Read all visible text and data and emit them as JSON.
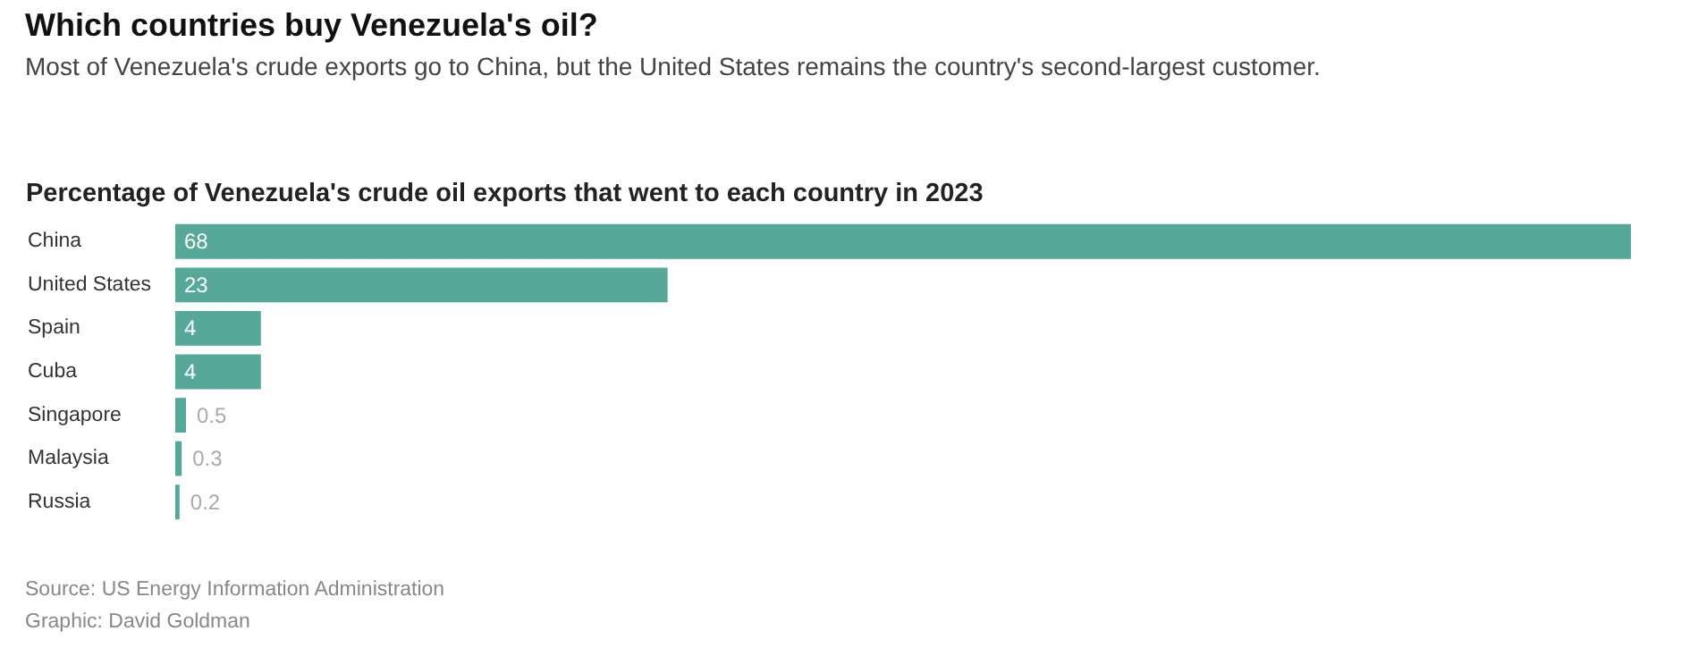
{
  "chart_data": {
    "type": "bar",
    "orientation": "horizontal",
    "title": "Which countries buy Venezuela's oil?",
    "subtitle": "Most of Venezuela's crude exports go to China, but the United States remains the country's second-largest customer.",
    "xlabel": "Percentage of Venezuela's crude oil exports that went to each country in 2023",
    "categories": [
      "China",
      "United States",
      "Spain",
      "Cuba",
      "Singapore",
      "Malaysia",
      "Russia"
    ],
    "values": [
      68,
      23,
      4,
      4,
      0.5,
      0.3,
      0.2
    ],
    "color": "#56a898",
    "data_labels": true,
    "annotations": [
      "Source: US Energy Information Administration",
      "Graphic: David Goldman"
    ]
  }
}
